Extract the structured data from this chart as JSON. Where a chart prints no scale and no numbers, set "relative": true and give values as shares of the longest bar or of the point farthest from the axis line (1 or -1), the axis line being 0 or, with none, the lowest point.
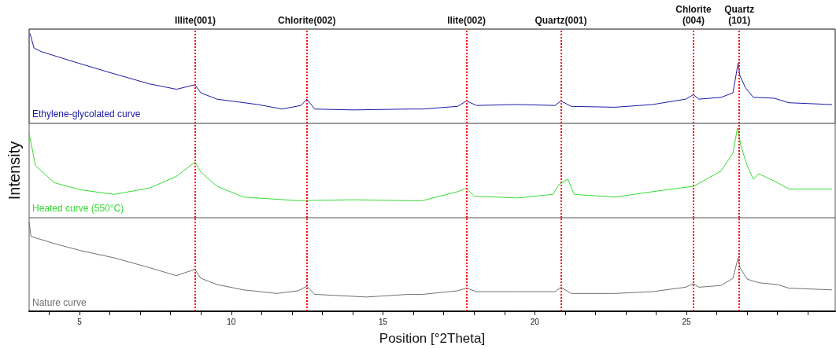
{
  "chart_data": [
    {
      "type": "line",
      "relative": true,
      "xlim": [
        3.34,
        29.9
      ],
      "tick_labels": false,
      "marker": "none",
      "line_style": "solid",
      "x": [
        3.37,
        3.5,
        3.73,
        4.97,
        5.96,
        7.3,
        8.2,
        8.8,
        9.0,
        9.53,
        10.88,
        11.68,
        12.3,
        12.49,
        12.75,
        14.0,
        15.85,
        16.3,
        17.46,
        17.75,
        18.08,
        19.43,
        20.67,
        20.86,
        21.2,
        22.64,
        23.88,
        24.97,
        25.23,
        25.41,
        26.14,
        26.53,
        26.7,
        26.76,
        26.94,
        27.2,
        27.9,
        28.37,
        29.8
      ],
      "series": [
        {
          "name": "Ethylene-glycolated curve",
          "color": "#1a1aa6",
          "values": [
            1,
            0.84,
            0.8,
            0.67,
            0.57,
            0.44,
            0.38,
            0.43,
            0.34,
            0.27,
            0.21,
            0.16,
            0.2,
            0.27,
            0.16,
            0.15,
            0.16,
            0.16,
            0.19,
            0.25,
            0.2,
            0.21,
            0.2,
            0.25,
            0.19,
            0.18,
            0.21,
            0.27,
            0.32,
            0.27,
            0.29,
            0.34,
            0.67,
            0.53,
            0.4,
            0.29,
            0.28,
            0.23,
            0.21
          ]
        }
      ],
      "ref_lines": [
        {
          "axis": "x",
          "value": 8.81,
          "label": "Illite(001)",
          "color": "#ff0000",
          "line_style": "dotted"
        },
        {
          "axis": "x",
          "value": 12.49,
          "label": "Chlorite(002)",
          "color": "#ff0000",
          "line_style": "dotted"
        },
        {
          "axis": "x",
          "value": 17.75,
          "label": "Ilite(002)",
          "color": "#ff0000",
          "line_style": "dotted"
        },
        {
          "axis": "x",
          "value": 20.86,
          "label": "Quartz(001)",
          "color": "#ff0000",
          "line_style": "dotted"
        },
        {
          "axis": "x",
          "value": 25.23,
          "label": "Chlorite\n(004)",
          "color": "#ff0000",
          "line_style": "dotted"
        },
        {
          "axis": "x",
          "value": 26.74,
          "label": "Quartz\n(101)",
          "color": "#ff0000",
          "line_style": "dotted"
        }
      ]
    },
    {
      "type": "line",
      "relative": true,
      "xlim": [
        3.34,
        29.9
      ],
      "tick_labels": false,
      "marker": "none",
      "line_style": "solid",
      "ylabel": "Intensity",
      "x": [
        3.34,
        3.55,
        4.17,
        5.05,
        6.14,
        7.3,
        8.19,
        8.8,
        9.0,
        9.53,
        10.41,
        12.2,
        14.0,
        15.85,
        16.3,
        17.46,
        17.75,
        18.0,
        19.43,
        20.6,
        20.8,
        21.09,
        21.3,
        22.64,
        23.88,
        25.23,
        26.14,
        26.53,
        26.68,
        26.8,
        27.0,
        27.2,
        27.38,
        28.0,
        28.37,
        29.8
      ],
      "series": [
        {
          "name": "Heated curve (550°C)",
          "color": "#33dd33",
          "values": [
            0.94,
            0.58,
            0.39,
            0.31,
            0.26,
            0.33,
            0.46,
            0.62,
            0.51,
            0.35,
            0.23,
            0.19,
            0.2,
            0.19,
            0.19,
            0.29,
            0.33,
            0.24,
            0.22,
            0.26,
            0.37,
            0.43,
            0.26,
            0.23,
            0.29,
            0.35,
            0.52,
            0.72,
            1,
            0.79,
            0.58,
            0.43,
            0.49,
            0.39,
            0.32,
            0.32
          ]
        }
      ],
      "ref_lines": [
        {
          "axis": "x",
          "value": 8.81,
          "label": null,
          "color": "#ff0000",
          "line_style": "dotted"
        },
        {
          "axis": "x",
          "value": 12.49,
          "label": null,
          "color": "#ff0000",
          "line_style": "dotted"
        },
        {
          "axis": "x",
          "value": 17.75,
          "label": null,
          "color": "#ff0000",
          "line_style": "dotted"
        },
        {
          "axis": "x",
          "value": 20.86,
          "label": null,
          "color": "#ff0000",
          "line_style": "dotted"
        },
        {
          "axis": "x",
          "value": 25.23,
          "label": null,
          "color": "#ff0000",
          "line_style": "dotted"
        },
        {
          "axis": "x",
          "value": 26.74,
          "label": null,
          "color": "#ff0000",
          "line_style": "dotted"
        }
      ]
    },
    {
      "type": "line",
      "relative": true,
      "xlim": [
        3.34,
        29.9
      ],
      "tick_labels": "x",
      "marker": "none",
      "line_style": "solid",
      "xlabel": "Position [°2Theta]",
      "xticks": [
        {
          "value": 4,
          "label": null
        },
        5,
        {
          "value": 6,
          "label": null
        },
        {
          "value": 7,
          "label": null
        },
        {
          "value": 8,
          "label": null
        },
        {
          "value": 9,
          "label": null
        },
        10,
        {
          "value": 11,
          "label": null
        },
        {
          "value": 12,
          "label": null
        },
        {
          "value": 13,
          "label": null
        },
        {
          "value": 14,
          "label": null
        },
        15,
        {
          "value": 16,
          "label": null
        },
        {
          "value": 17,
          "label": null
        },
        {
          "value": 18,
          "label": null
        },
        {
          "value": 19,
          "label": null
        },
        20,
        {
          "value": 21,
          "label": null
        },
        {
          "value": 22,
          "label": null
        },
        {
          "value": 23,
          "label": null
        },
        {
          "value": 24,
          "label": null
        },
        25,
        {
          "value": 26,
          "label": null
        },
        {
          "value": 27,
          "label": null
        },
        {
          "value": 28,
          "label": null
        },
        {
          "value": 29,
          "label": null
        }
      ],
      "x": [
        3.34,
        3.4,
        4.17,
        5.05,
        6.14,
        7.3,
        8.19,
        8.8,
        9.0,
        9.53,
        10.41,
        11.5,
        12.2,
        12.49,
        12.75,
        14.45,
        15.85,
        16.3,
        17.46,
        17.75,
        18.08,
        19.43,
        20.67,
        20.86,
        21.2,
        22.64,
        23.88,
        24.97,
        25.23,
        25.41,
        26.14,
        26.53,
        26.7,
        26.76,
        27.0,
        27.38,
        28.0,
        28.37,
        29.8
      ],
      "series": [
        {
          "name": "Nature curve",
          "color": "#707070",
          "values": [
            1,
            0.84,
            0.76,
            0.68,
            0.6,
            0.49,
            0.4,
            0.47,
            0.37,
            0.3,
            0.24,
            0.2,
            0.23,
            0.28,
            0.19,
            0.16,
            0.19,
            0.19,
            0.23,
            0.26,
            0.22,
            0.22,
            0.22,
            0.27,
            0.2,
            0.2,
            0.22,
            0.27,
            0.31,
            0.27,
            0.29,
            0.37,
            0.6,
            0.49,
            0.36,
            0.32,
            0.3,
            0.26,
            0.24
          ]
        }
      ],
      "ref_lines": [
        {
          "axis": "x",
          "value": 8.81,
          "label": null,
          "color": "#ff0000",
          "line_style": "dotted"
        },
        {
          "axis": "x",
          "value": 12.49,
          "label": null,
          "color": "#ff0000",
          "line_style": "dotted"
        },
        {
          "axis": "x",
          "value": 17.75,
          "label": null,
          "color": "#ff0000",
          "line_style": "dotted"
        },
        {
          "axis": "x",
          "value": 20.86,
          "label": null,
          "color": "#ff0000",
          "line_style": "dotted"
        },
        {
          "axis": "x",
          "value": 25.23,
          "label": null,
          "color": "#ff0000",
          "line_style": "dotted"
        },
        {
          "axis": "x",
          "value": 26.74,
          "label": null,
          "color": "#ff0000",
          "line_style": "dotted"
        }
      ]
    }
  ]
}
